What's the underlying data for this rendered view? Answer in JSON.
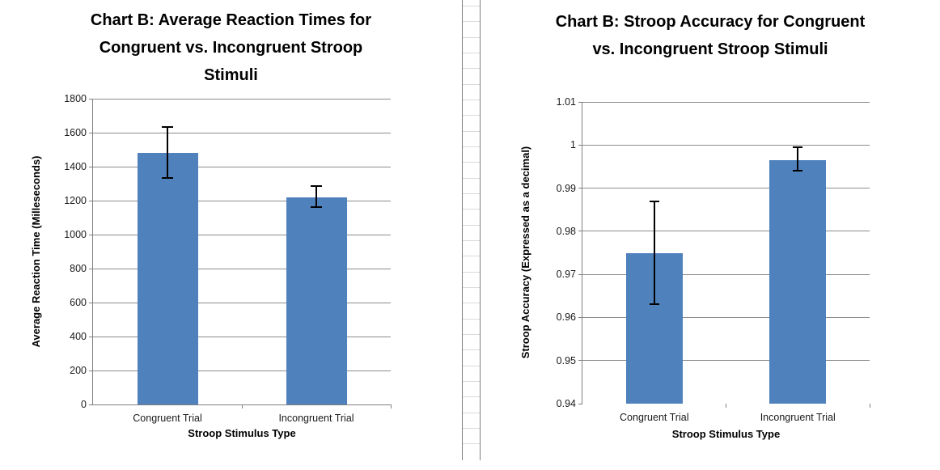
{
  "app": {
    "context": "spreadsheet-charts-view",
    "accent_color": "#4F81BD",
    "gridline_color": "#8C8C8C",
    "axis_color": "#808080"
  },
  "chart_data": [
    {
      "type": "bar",
      "title": "Chart  B: Average Reaction Times for\nCongruent vs. Incongruent Stroop\nStimuli",
      "xlabel": "Stroop Stimulus Type",
      "ylabel": "Average Reaction Time (Milleseconds)",
      "categories": [
        "Congruent Trial",
        "Incongruent Trial"
      ],
      "values": [
        1483,
        1220
      ],
      "error_low": [
        1333,
        1160
      ],
      "error_high": [
        1633,
        1285
      ],
      "ylim": [
        0,
        1800
      ],
      "ytick_values": [
        0,
        200,
        400,
        600,
        800,
        1000,
        1200,
        1400,
        1600,
        1800
      ],
      "ytick_labels": [
        "0",
        "200",
        "400",
        "600",
        "800",
        "1000",
        "1200",
        "1400",
        "1600",
        "1800"
      ],
      "bar_color": "#4F81BD",
      "grid": true,
      "x_axis_line": true,
      "legend": "none"
    },
    {
      "type": "bar",
      "title": "Chart B: Stroop Accuracy for Congruent\nvs. Incongruent Stroop Stimuli",
      "xlabel": "Stroop Stimulus Type",
      "ylabel": "Stroop Accuracy (Expressed as a decimal)",
      "categories": [
        "Congruent Trial",
        "Incongruent Trial"
      ],
      "values": [
        0.975,
        0.9965
      ],
      "error_low": [
        0.963,
        0.994
      ],
      "error_high": [
        0.987,
        0.9995
      ],
      "ylim": [
        0.94,
        1.01
      ],
      "ytick_values": [
        0.94,
        0.95,
        0.96,
        0.97,
        0.98,
        0.99,
        1,
        1.01
      ],
      "ytick_labels": [
        "0.94",
        "0.95",
        "0.96",
        "0.97",
        "0.98",
        "0.99",
        "1",
        "1.01"
      ],
      "bar_color": "#4F81BD",
      "grid": true,
      "x_axis_line": false,
      "legend": "none"
    }
  ]
}
